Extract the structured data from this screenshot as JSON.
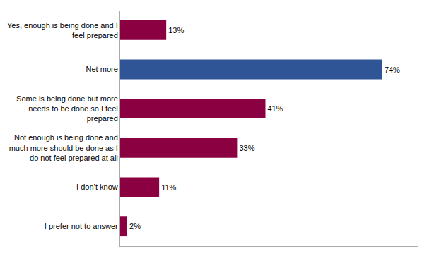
{
  "chart_data": {
    "type": "bar",
    "orientation": "horizontal",
    "categories": [
      "Yes, enough is being done and I\nfeel prepared",
      "Net more",
      "Some is being done but more\nneeds to be done so I feel\nprepared",
      "Not enough is being done and\nmuch more should be done as I\ndo not feel prepared at all",
      "I don’t know",
      "I prefer not to answer"
    ],
    "values": [
      13,
      74,
      41,
      33,
      11,
      2
    ],
    "value_labels": [
      "13%",
      "74%",
      "41%",
      "33%",
      "11%",
      "2%"
    ],
    "colors": [
      "#8B0040",
      "#2F5597",
      "#8B0040",
      "#8B0040",
      "#8B0040",
      "#8B0040"
    ],
    "xlim": [
      0,
      84
    ],
    "data_labels": true,
    "tick_labels": "y",
    "grid": false
  }
}
